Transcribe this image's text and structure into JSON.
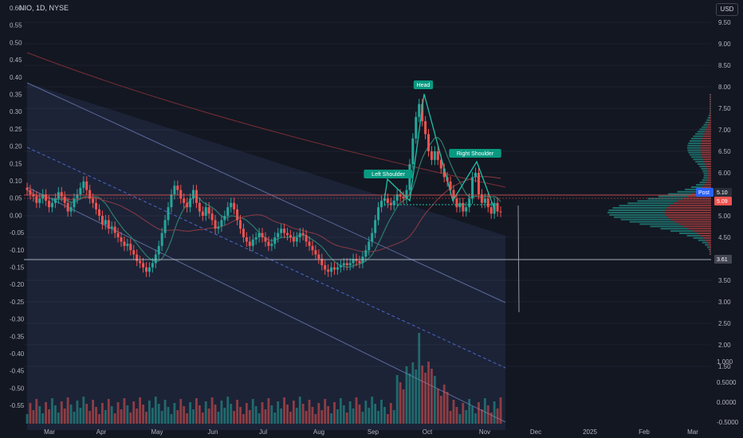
{
  "header": {
    "symbol_line": "NIO, 1D, NYSE",
    "currency": "USD"
  },
  "colors": {
    "up": "#26a69a",
    "down": "#ef5350",
    "bg": "#131722",
    "channel": "#5b6b9a",
    "label_bg": "#089981"
  },
  "chart_data": {
    "type": "candlestick",
    "left_axis": {
      "ticks": [
        "0.60",
        "0.55",
        "0.50",
        "0.45",
        "0.40",
        "0.35",
        "0.30",
        "0.25",
        "0.20",
        "0.15",
        "0.10",
        "0.05",
        "0.00",
        "-0.05",
        "-0.10",
        "-0.15",
        "-0.20",
        "-0.25",
        "-0.30",
        "-0.35",
        "-0.40",
        "-0.45",
        "-0.50",
        "-0.55"
      ]
    },
    "price_axis": {
      "ticks": [
        "9.50",
        "9.00",
        "8.50",
        "8.00",
        "7.50",
        "7.00",
        "6.50",
        "6.00",
        "5.50",
        "5.00",
        "4.50",
        "4.00",
        "3.50",
        "3.00",
        "2.50",
        "2.00",
        "1.50"
      ],
      "min": 0,
      "max": 9.5
    },
    "volume_axis": {
      "ticks": [
        "1.000",
        "0.5000",
        "0.0000",
        "-0.5000"
      ]
    },
    "x_axis": {
      "ticks": [
        "Mar",
        "Apr",
        "May",
        "Jun",
        "Jul",
        "Aug",
        "Sep",
        "Oct",
        "Nov",
        "Dec",
        "2025",
        "Feb",
        "Mar"
      ]
    },
    "badges": {
      "post_label": "Post",
      "post_value": "5.10",
      "last_value": "5.09",
      "level_value": "3.61"
    },
    "pattern_labels": [
      "Left Shoulder",
      "Head",
      "Right Shoulder"
    ],
    "prices": [
      5.6,
      5.5,
      5.45,
      5.3,
      5.4,
      5.5,
      5.35,
      5.2,
      5.3,
      5.4,
      5.55,
      5.45,
      5.3,
      5.1,
      5.2,
      5.4,
      5.5,
      5.65,
      5.8,
      5.6,
      5.4,
      5.3,
      5.15,
      5.0,
      4.8,
      4.9,
      4.7,
      4.75,
      4.6,
      4.5,
      4.4,
      4.3,
      4.35,
      4.2,
      4.1,
      3.95,
      3.9,
      3.8,
      3.7,
      3.8,
      3.9,
      4.1,
      4.3,
      4.6,
      4.9,
      5.2,
      5.5,
      5.7,
      5.6,
      5.4,
      5.3,
      5.2,
      5.4,
      5.6,
      5.3,
      5.1,
      5.0,
      5.2,
      5.05,
      4.9,
      4.7,
      4.75,
      4.9,
      5.0,
      5.2,
      5.3,
      5.15,
      4.9,
      4.7,
      4.5,
      4.4,
      4.3,
      4.45,
      4.5,
      4.6,
      4.5,
      4.4,
      4.3,
      4.35,
      4.5,
      4.6,
      4.7,
      4.6,
      4.55,
      4.5,
      4.4,
      4.5,
      4.6,
      4.55,
      4.4,
      4.3,
      4.2,
      4.1,
      4.0,
      3.85,
      3.75,
      3.7,
      3.8,
      3.75,
      3.8,
      3.85,
      3.9,
      3.85,
      3.9,
      4.0,
      3.95,
      3.9,
      4.05,
      4.2,
      4.4,
      4.6,
      4.9,
      5.2,
      5.35,
      5.4,
      5.3,
      5.25,
      5.35,
      5.5,
      5.45,
      5.4,
      5.6,
      6.2,
      6.8,
      7.3,
      7.6,
      7.2,
      6.9,
      6.5,
      6.3,
      6.5,
      6.3,
      6.1,
      5.9,
      5.8,
      5.6,
      5.4,
      5.2,
      5.3,
      5.1,
      5.2,
      5.4,
      5.9,
      6.0,
      5.5,
      5.3,
      5.4,
      5.2,
      5.05,
      5.3,
      5.1,
      5.09
    ]
  }
}
